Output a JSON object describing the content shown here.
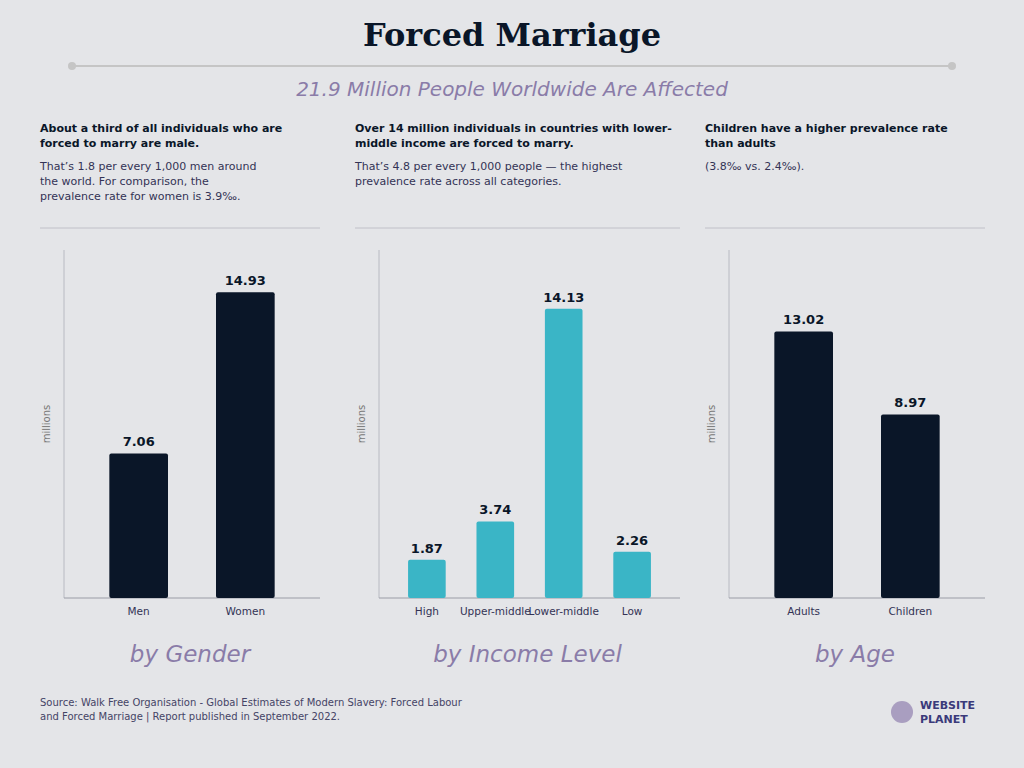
{
  "title": "Forced Marriage",
  "subtitle": "21.9 Million People Worldwide Are Affected",
  "annotations": [
    "Source: Walk Free Organisation - Global Estimates of Modern Slavery: Forced Labour\nand Forced Marriage | Report published in September 2022.",
    "WEBSITE",
    "PLANET"
  ],
  "chart_data": [
    {
      "type": "bar",
      "title": "by Gender",
      "categories": [
        "Men",
        "Women"
      ],
      "values": [
        7.06,
        14.93
      ],
      "color": "#0a1628",
      "ylim": [
        0,
        17
      ],
      "ylabel": "millions",
      "data_labels": true,
      "tick_labels": "x",
      "annotations": [
        "About a third of all individuals who are\nforced to marry are male.",
        "That’s 1.8 per every 1,000 men around\nthe world. For comparison, the\nprevalence rate for women is 3.9‰."
      ]
    },
    {
      "type": "bar",
      "title": "by Income Level",
      "categories": [
        "High",
        "Upper-middle",
        "Lower-middle",
        "Low"
      ],
      "values": [
        1.87,
        3.74,
        14.13,
        2.26
      ],
      "color": "#3ab5c6",
      "ylim": [
        0,
        17
      ],
      "ylabel": "millions",
      "data_labels": true,
      "tick_labels": "x",
      "annotations": [
        "Over 14 million individuals in countries with lower-\nmiddle income are forced to marry.",
        "That’s 4.8 per every 1,000 people — the highest\nprevalence rate across all categories."
      ]
    },
    {
      "type": "bar",
      "title": "by Age",
      "categories": [
        "Adults",
        "Children"
      ],
      "values": [
        13.02,
        8.97
      ],
      "color": "#0a1628",
      "ylim": [
        0,
        17
      ],
      "ylabel": "millions",
      "data_labels": true,
      "tick_labels": "x",
      "annotations": [
        "Children have a higher prevalence rate\nthan adults ",
        "(3.8‰ vs. 2.4‰)."
      ]
    }
  ]
}
